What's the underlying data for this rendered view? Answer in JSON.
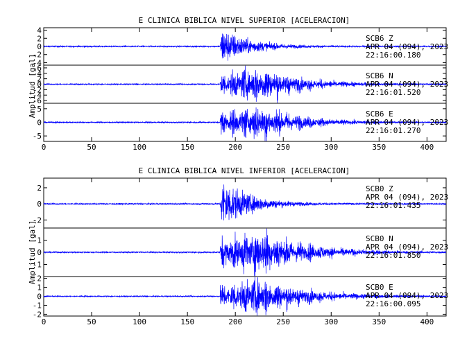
{
  "chart_data": [
    {
      "type": "line",
      "title": "E CLINICA BIBLICA NIVEL SUPERIOR [ACELERACION]",
      "ylabel": "Amplitud [gal]",
      "xlabel": "",
      "xlim": [
        0,
        420
      ],
      "x_ticks": [
        0,
        50,
        100,
        150,
        200,
        250,
        300,
        350,
        400
      ],
      "color": "#0000ff",
      "series": [
        {
          "name": "SCB6 Z",
          "label_lines": [
            "SCB6   Z",
            "APR 04 (094), 2023",
            "22:16:00.180"
          ],
          "ylim": [
            -4.6,
            4.6
          ],
          "yticks": [
            -4,
            -2,
            0,
            2,
            4
          ],
          "onset": 184,
          "peak": 4.1,
          "pre_noise": 0.15,
          "decay_tau": 28,
          "envelope": "impulsive"
        },
        {
          "name": "SCB6 N",
          "label_lines": [
            "SCB6   N",
            "APR 04 (094), 2023",
            "22:16:01.520"
          ],
          "ylim": [
            -7,
            7
          ],
          "yticks": [
            -6,
            -4,
            -2,
            0,
            2,
            4,
            6
          ],
          "onset": 184,
          "peak": 6.5,
          "pre_noise": 0.2,
          "decay_tau": 40,
          "envelope": "burst"
        },
        {
          "name": "SCB6 E",
          "label_lines": [
            "SCB6   E",
            "APR 04 (094), 2023",
            "22:16:01.270"
          ],
          "ylim": [
            -7,
            7
          ],
          "yticks": [
            -5,
            0,
            5
          ],
          "onset": 184,
          "peak": 6.5,
          "pre_noise": 0.2,
          "decay_tau": 40,
          "envelope": "burst"
        }
      ]
    },
    {
      "type": "line",
      "title": "E CLINICA BIBLICA NIVEL INFERIOR [ACELERACION]",
      "ylabel": "Amplitud [gal]",
      "xlabel": "",
      "xlim": [
        0,
        420
      ],
      "x_ticks": [
        0,
        50,
        100,
        150,
        200,
        250,
        300,
        350,
        400
      ],
      "color": "#0000ff",
      "series": [
        {
          "name": "SCB0 Z",
          "label_lines": [
            "SCB0   Z",
            "APR 04 (094), 2023",
            "22:16:01.435"
          ],
          "ylim": [
            -3,
            3.2
          ],
          "yticks": [
            -2,
            0,
            2
          ],
          "onset": 184,
          "peak": 2.8,
          "pre_noise": 0.08,
          "decay_tau": 28,
          "envelope": "impulsive"
        },
        {
          "name": "SCB0 N",
          "label_lines": [
            "SCB0   N",
            "APR 04 (094), 2023",
            "22:16:01.850"
          ],
          "ylim": [
            -2,
            2
          ],
          "yticks": [
            -1,
            0,
            1
          ],
          "onset": 184,
          "peak": 1.9,
          "pre_noise": 0.05,
          "decay_tau": 45,
          "envelope": "burst"
        },
        {
          "name": "SCB0 E",
          "label_lines": [
            "SCB0   E",
            "APR 04 (094), 2023",
            "22:16:00.095"
          ],
          "ylim": [
            -2.2,
            2.2
          ],
          "yticks": [
            -2,
            -1,
            0,
            1,
            2
          ],
          "onset": 184,
          "peak": 2.1,
          "pre_noise": 0.06,
          "decay_tau": 45,
          "envelope": "burst"
        }
      ]
    }
  ]
}
